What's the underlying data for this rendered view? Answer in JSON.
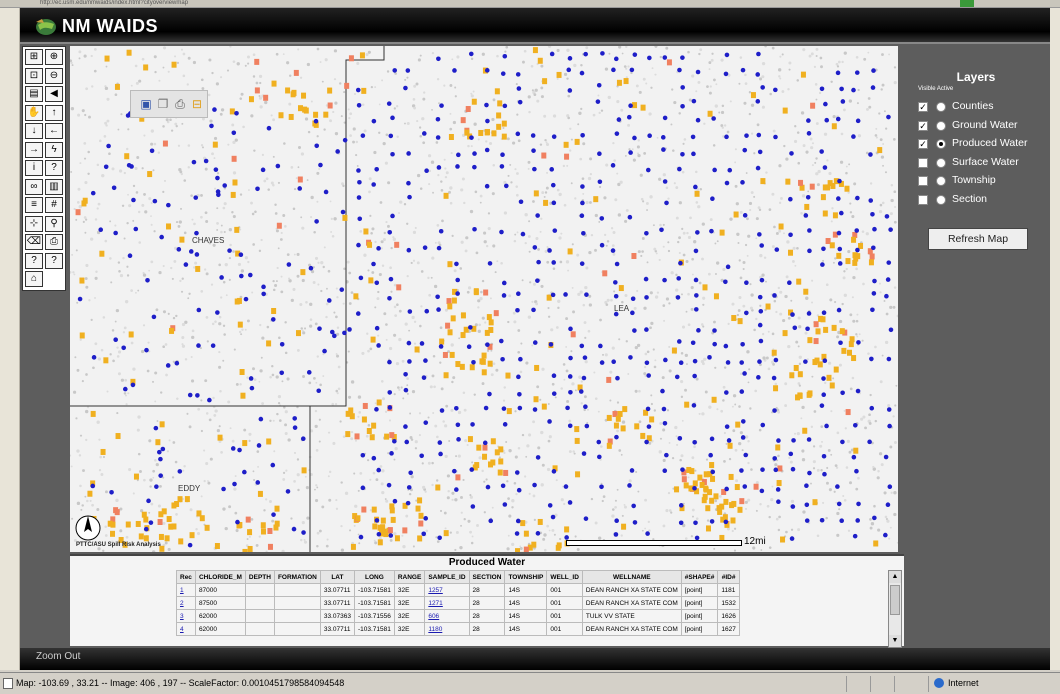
{
  "app": {
    "title": "NM WAIDS",
    "zoom_out_label": "Zoom Out"
  },
  "browser": {
    "address": "http://ec.usm.edu/nmwaids/index.html?cityoverviewmap",
    "zone_label": "Internet"
  },
  "toolbar": {
    "buttons": [
      {
        "name": "overview-icon",
        "glyph": "⊞"
      },
      {
        "name": "zoom-in-icon",
        "glyph": "⊕"
      },
      {
        "name": "zoom-box-icon",
        "glyph": "⊡"
      },
      {
        "name": "zoom-out-icon",
        "glyph": "⊖"
      },
      {
        "name": "map-icon",
        "glyph": "▤"
      },
      {
        "name": "back-icon",
        "glyph": "◀"
      },
      {
        "name": "pan-hand-icon",
        "glyph": "✋"
      },
      {
        "name": "pan-up-icon",
        "glyph": "↑"
      },
      {
        "name": "pan-down-icon",
        "glyph": "↓"
      },
      {
        "name": "pan-left-icon",
        "glyph": "←"
      },
      {
        "name": "pan-right-icon",
        "glyph": "→"
      },
      {
        "name": "lightning-icon",
        "glyph": "ϟ"
      },
      {
        "name": "info-icon",
        "glyph": "i"
      },
      {
        "name": "query-icon",
        "glyph": "?"
      },
      {
        "name": "binoculars-icon",
        "glyph": "∞"
      },
      {
        "name": "chart-icon",
        "glyph": "▥"
      },
      {
        "name": "list-icon",
        "glyph": "≡"
      },
      {
        "name": "grid-icon",
        "glyph": "#"
      },
      {
        "name": "select-icon",
        "glyph": "⊹"
      },
      {
        "name": "search-icon",
        "glyph": "⚲"
      },
      {
        "name": "eraser-icon",
        "glyph": "⌫"
      },
      {
        "name": "print-icon",
        "glyph": "⎙"
      },
      {
        "name": "help-icon",
        "glyph": "?"
      },
      {
        "name": "help2-icon",
        "glyph": "?"
      },
      {
        "name": "home-icon",
        "glyph": "⌂"
      }
    ]
  },
  "savebar": {
    "buttons": [
      {
        "name": "save-icon",
        "glyph": "▣"
      },
      {
        "name": "copy-icon",
        "glyph": "❐"
      },
      {
        "name": "print-map-icon",
        "glyph": "⎙"
      },
      {
        "name": "export-icon",
        "glyph": "⊟"
      }
    ]
  },
  "map": {
    "county_labels": [
      "CHAVES",
      "LEA",
      "EDDY"
    ],
    "attribution": "PTTC/ASU Spill Risk Analysis",
    "scale_label": "12mi"
  },
  "layers": {
    "title": "Layers",
    "subtitle": "Visible Active",
    "items": [
      {
        "label": "Counties",
        "visible": true,
        "active": false
      },
      {
        "label": "Ground Water",
        "visible": true,
        "active": false
      },
      {
        "label": "Produced Water",
        "visible": true,
        "active": true
      },
      {
        "label": "Surface Water",
        "visible": false,
        "active": false
      },
      {
        "label": "Township",
        "visible": false,
        "active": false
      },
      {
        "label": "Section",
        "visible": false,
        "active": false
      }
    ],
    "refresh_label": "Refresh Map"
  },
  "results": {
    "title": "Produced Water",
    "columns": [
      "Rec",
      "CHLORIDE_M",
      "DEPTH",
      "FORMATION",
      "LAT",
      "LONG",
      "RANGE",
      "SAMPLE_ID",
      "SECTION",
      "TOWNSHIP",
      "WELL_ID",
      "WELLNAME",
      "#SHAPE#",
      "#ID#"
    ],
    "rows": [
      [
        "1",
        "87000",
        "",
        "",
        "33.07711",
        "-103.71581",
        "32E",
        "1257",
        "28",
        "14S",
        "001",
        "DEAN RANCH XA STATE COM",
        "[point]",
        "1181"
      ],
      [
        "2",
        "87500",
        "",
        "",
        "33.07711",
        "-103.71581",
        "32E",
        "1271",
        "28",
        "14S",
        "001",
        "DEAN RANCH XA STATE COM",
        "[point]",
        "1532"
      ],
      [
        "3",
        "62000",
        "",
        "",
        "33.07363",
        "-103.71556",
        "32E",
        "606",
        "28",
        "14S",
        "001",
        "TULK VV STATE",
        "[point]",
        "1626"
      ],
      [
        "4",
        "62000",
        "",
        "",
        "33.07711",
        "-103.71581",
        "32E",
        "1180",
        "28",
        "14S",
        "001",
        "DEAN RANCH XA STATE COM",
        "[point]",
        "1627"
      ]
    ]
  },
  "status": {
    "text": "Map: -103.69 , 33.21 -- Image: 406 , 197 -- ScaleFactor: 0.0010451798584094548"
  },
  "colors": {
    "ground_water": "#1e1ec8",
    "produced_water": "#f0b020",
    "produced_water_alt": "#f08060"
  }
}
